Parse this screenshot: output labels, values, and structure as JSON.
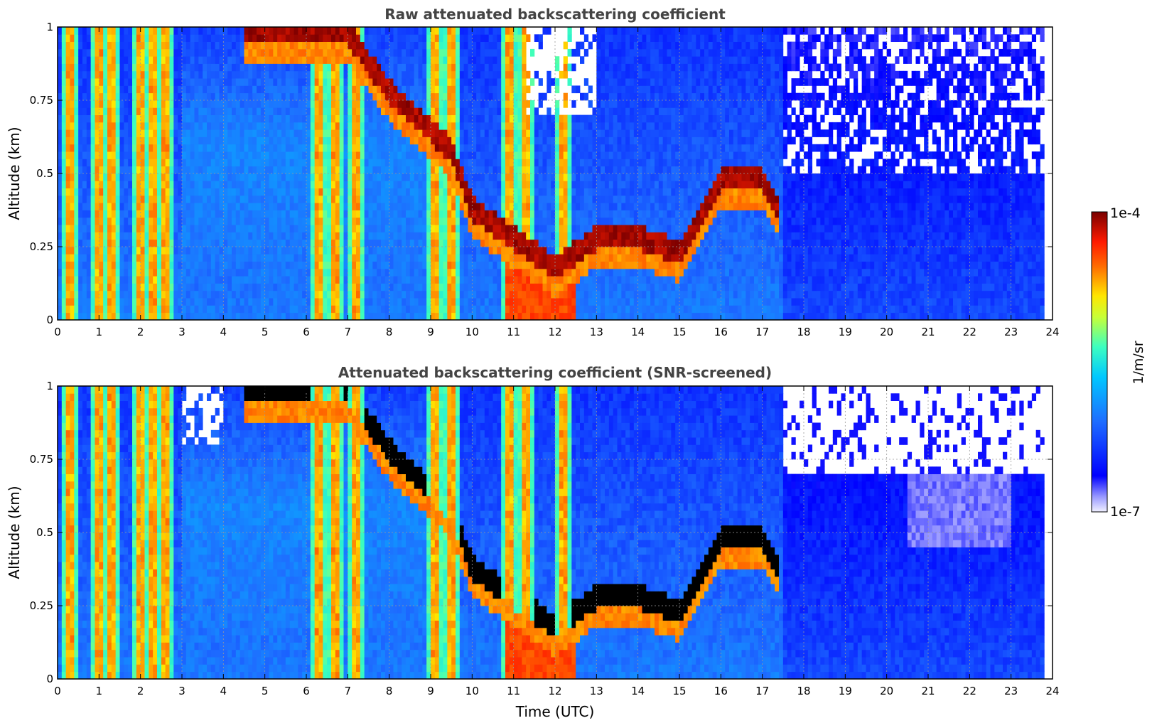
{
  "chart_data": [
    {
      "type": "heatmap",
      "title": "Raw attenuated backscattering coefficient",
      "xlabel": "",
      "ylabel": "Altitude (km)",
      "xlim": [
        0,
        24
      ],
      "ylim": [
        0,
        1
      ],
      "x_ticks": [
        "0",
        "1",
        "2",
        "3",
        "4",
        "5",
        "6",
        "7",
        "8",
        "9",
        "10",
        "11",
        "12",
        "13",
        "14",
        "15",
        "16",
        "17",
        "18",
        "19",
        "20",
        "21",
        "22",
        "23",
        "24"
      ],
      "y_ticks": [
        "0",
        "0.25",
        "0.5",
        "0.75",
        "1"
      ],
      "grid": true,
      "colorscale": "jet",
      "value_range": [
        "1e-7",
        "1e-4"
      ],
      "features": {
        "aerosol_layer_top_km": [
          [
            4.5,
            1.0
          ],
          [
            7.0,
            1.0
          ],
          [
            8.0,
            0.8
          ],
          [
            9.5,
            0.6
          ],
          [
            10.0,
            0.4
          ],
          [
            11.0,
            0.3
          ],
          [
            12.0,
            0.2
          ],
          [
            13.0,
            0.3
          ],
          [
            14.0,
            0.3
          ],
          [
            15.0,
            0.25
          ],
          [
            16.0,
            0.5
          ],
          [
            17.0,
            0.5
          ],
          [
            17.4,
            0.4
          ]
        ],
        "vertical_streak_hours": [
          0.3,
          1.0,
          1.3,
          2.0,
          2.3,
          2.6,
          6.3,
          6.7,
          7.2,
          9.1,
          9.5,
          10.9,
          11.3,
          12.2
        ]
      }
    },
    {
      "type": "heatmap",
      "title": "Attenuated backscattering coefficient (SNR-screened)",
      "xlabel": "Time (UTC)",
      "ylabel": "Altitude (km)",
      "xlim": [
        0,
        24
      ],
      "ylim": [
        0,
        1
      ],
      "x_ticks": [
        "0",
        "1",
        "2",
        "3",
        "4",
        "5",
        "6",
        "7",
        "8",
        "9",
        "10",
        "11",
        "12",
        "13",
        "14",
        "15",
        "16",
        "17",
        "18",
        "19",
        "20",
        "21",
        "22",
        "23",
        "24"
      ],
      "y_ticks": [
        "0",
        "0.25",
        "0.5",
        "0.75",
        "1"
      ],
      "grid": true,
      "colorscale": "jet",
      "value_range": [
        "1e-7",
        "1e-4"
      ]
    }
  ],
  "colorbar": {
    "label": "1/m/sr",
    "max_label": "1e-4",
    "min_label": "1e-7"
  }
}
